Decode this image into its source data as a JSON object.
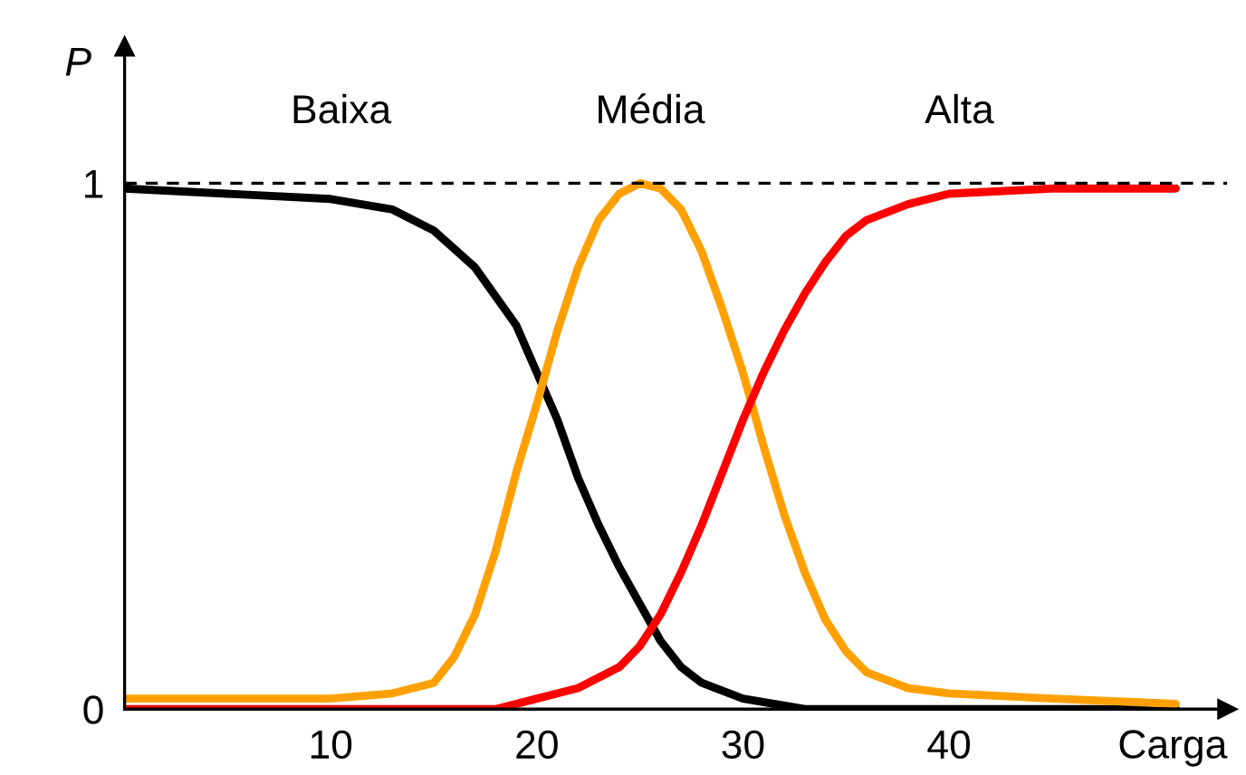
{
  "chart_data": {
    "type": "line",
    "xlabel": "Carga",
    "ylabel": "P",
    "xlim": [
      0,
      53.5
    ],
    "ylim": [
      0,
      1.26
    ],
    "xticks": [
      10,
      20,
      30,
      40
    ],
    "yticks": [
      0,
      1
    ],
    "grid": false,
    "legend": false,
    "marker": "none",
    "line_style": "solid",
    "ref_lines": [
      {
        "axis": "y",
        "value": 1,
        "color": "#000000",
        "line_style": "dashed"
      }
    ],
    "series": [
      {
        "name": "Baixa",
        "color": "#000000",
        "x": [
          0,
          5,
          10,
          13,
          15,
          17,
          19,
          20,
          21,
          22,
          23,
          24,
          25,
          26,
          27,
          28,
          30,
          33,
          40,
          51
        ],
        "values": [
          0.99,
          0.98,
          0.97,
          0.95,
          0.91,
          0.84,
          0.73,
          0.64,
          0.55,
          0.44,
          0.35,
          0.27,
          0.2,
          0.13,
          0.08,
          0.05,
          0.02,
          0,
          0,
          0
        ]
      },
      {
        "name": "Média",
        "color": "#ffa000",
        "x": [
          0,
          10,
          13,
          15,
          16,
          17,
          18,
          19,
          20,
          21,
          22,
          23,
          24,
          25,
          26,
          27,
          28,
          29,
          30,
          31,
          32,
          33,
          34,
          35,
          36,
          38,
          40,
          45,
          51
        ],
        "values": [
          0.02,
          0.02,
          0.03,
          0.05,
          0.1,
          0.18,
          0.3,
          0.45,
          0.58,
          0.72,
          0.84,
          0.93,
          0.98,
          1.0,
          0.99,
          0.95,
          0.87,
          0.76,
          0.64,
          0.5,
          0.37,
          0.26,
          0.17,
          0.11,
          0.07,
          0.04,
          0.03,
          0.02,
          0.01
        ]
      },
      {
        "name": "Alta",
        "color": "#ff0000",
        "x": [
          0,
          18,
          20,
          22,
          24,
          25,
          26,
          27,
          28,
          29,
          30,
          31,
          32,
          33,
          34,
          35,
          36,
          38,
          40,
          45,
          51
        ],
        "values": [
          0,
          0,
          0.02,
          0.04,
          0.08,
          0.12,
          0.18,
          0.26,
          0.35,
          0.45,
          0.55,
          0.64,
          0.72,
          0.79,
          0.85,
          0.9,
          0.93,
          0.96,
          0.98,
          0.99,
          0.99
        ]
      }
    ]
  }
}
